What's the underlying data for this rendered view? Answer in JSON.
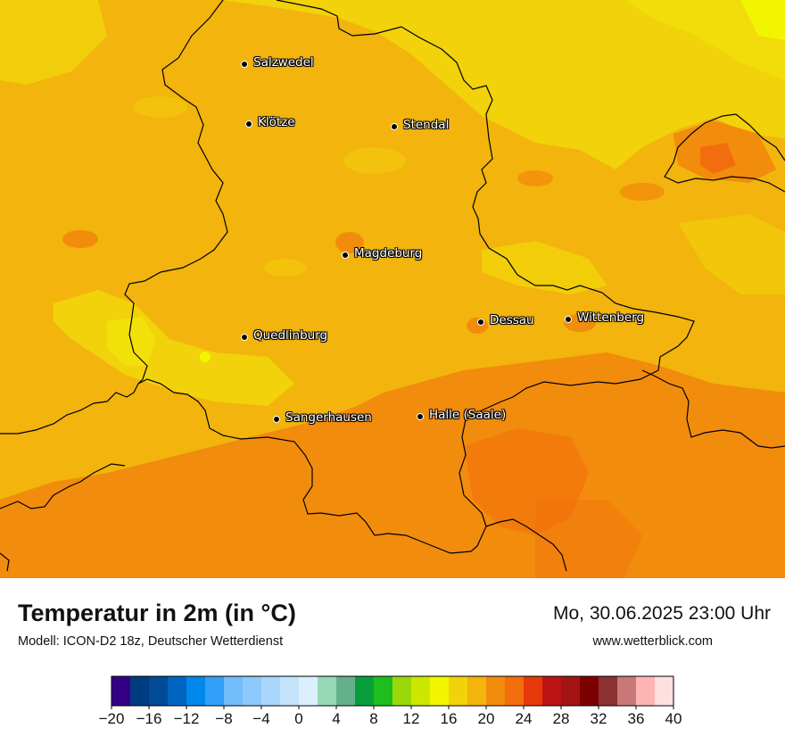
{
  "map": {
    "cities": [
      {
        "name": "Salzwedel"
      },
      {
        "name": "Klötze"
      },
      {
        "name": "Stendal"
      },
      {
        "name": "Magdeburg"
      },
      {
        "name": "Dessau"
      },
      {
        "name": "Wittenberg"
      },
      {
        "name": "Quedlinburg"
      },
      {
        "name": "Sangerhausen"
      },
      {
        "name": "Halle (Saale)"
      }
    ]
  },
  "footer": {
    "title": "Temperatur in 2m (in °C)",
    "subtitle": "Modell: ICON-D2 18z, Deutscher Wetterdienst",
    "datetime": "Mo, 30.06.2025 23:00 Uhr",
    "website": "www.wetterblick.com"
  },
  "legend": {
    "min": -20,
    "step": 2,
    "colors": [
      "#330086",
      "#003c80",
      "#004a96",
      "#0064c3",
      "#0088ea",
      "#32a0f8",
      "#72bdfb",
      "#8ec9fb",
      "#a8d7fb",
      "#c4e3fb",
      "#dbeffd",
      "#96d8b4",
      "#64b08a",
      "#0a9d3c",
      "#1ebe1e",
      "#9ad80a",
      "#cde800",
      "#f2f500",
      "#f2d20a",
      "#f2b40d",
      "#f28c0d",
      "#f26e0d",
      "#e6380a",
      "#be1414",
      "#a51414",
      "#7d0000",
      "#8c3232",
      "#c87878",
      "#ffb4b4",
      "#ffe0e0"
    ],
    "tick_labels": [
      "−20",
      "−16",
      "−12",
      "−8",
      "−4",
      "0",
      "4",
      "8",
      "12",
      "16",
      "20",
      "24",
      "28",
      "32",
      "36",
      "40"
    ]
  }
}
